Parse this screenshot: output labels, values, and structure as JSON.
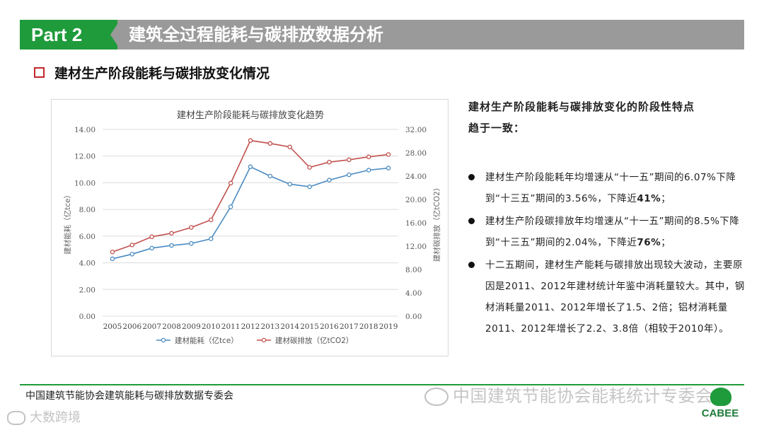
{
  "header": {
    "part_label": "Part 2",
    "title": "建筑全过程能耗与碳排放数据分析"
  },
  "section": {
    "title": "建材生产阶段能耗与碳排放变化情况"
  },
  "chart_data": {
    "type": "line",
    "title": "建材生产阶段能耗与碳排放变化趋势",
    "categories": [
      "2005",
      "2006",
      "2007",
      "2008",
      "2009",
      "2010",
      "2011",
      "2012",
      "2013",
      "2014",
      "2015",
      "2016",
      "2017",
      "2018",
      "2019"
    ],
    "series": [
      {
        "name": "建材能耗（亿tce）",
        "axis": "left",
        "color": "#4a8bc2",
        "values": [
          4.3,
          4.65,
          5.1,
          5.3,
          5.45,
          5.8,
          8.2,
          11.2,
          10.5,
          9.9,
          9.7,
          10.2,
          10.6,
          10.95,
          11.1
        ]
      },
      {
        "name": "建材碳排放（亿tCO2）",
        "axis": "right",
        "color": "#c0504d",
        "values": [
          11.0,
          12.2,
          13.6,
          14.2,
          15.2,
          16.5,
          22.8,
          30.1,
          29.6,
          29.0,
          25.5,
          26.4,
          26.8,
          27.3,
          27.7
        ]
      }
    ],
    "y_left": {
      "label": "建材能耗（亿tce）",
      "range": [
        0,
        14
      ],
      "ticks": [
        "0.00",
        "2.00",
        "4.00",
        "6.00",
        "8.00",
        "10.00",
        "12.00",
        "14.00"
      ]
    },
    "y_right": {
      "label": "建材碳排放（亿tCO2）",
      "range": [
        0,
        32
      ],
      "ticks": [
        "0.00",
        "4.00",
        "8.00",
        "12.00",
        "16.00",
        "20.00",
        "24.00",
        "28.00",
        "32.00"
      ]
    },
    "grid": true,
    "legend_position": "bottom"
  },
  "summary": {
    "heading_line1": "建材生产阶段能耗与碳排放变化的阶段性特点",
    "heading_line2": "趋于一致：",
    "bullets": [
      {
        "before": "建材生产阶段能耗年均增速从“十一五”期间的6.07%下降到“十三五”期间的3.56%，下降近",
        "strong": "41%",
        "after": "；"
      },
      {
        "before": "建材生产阶段碳排放年均增速从“十一五”期间的8.5%下降到“十三五”期间的2.04%，下降近",
        "strong": "76%",
        "after": "；"
      },
      {
        "before": "十二五期间，建材生产能耗与碳排放出现较大波动，主要原因是2011、2012年建材统计年鉴中消耗量较大。其中，钢材消耗量2011、2012年增长了1.5、2倍；铝材消耗量2011、2012年增长了2.2、3.8倍（相较于2010年）。",
        "strong": "",
        "after": ""
      }
    ]
  },
  "footer": {
    "left_text": "中国建筑节能协会建筑能耗与碳排放数据专委会",
    "watermark": "中国建筑节能协会能耗统计专委会",
    "watermark2": "大数跨境",
    "logo_text": "CABEE"
  }
}
